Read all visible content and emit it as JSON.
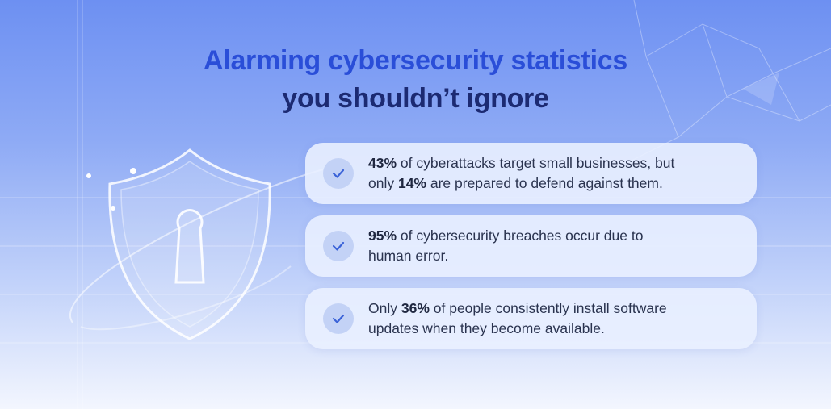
{
  "title": {
    "line1": "Alarming cybersecurity statistics",
    "line2": "you shouldn’t ignore"
  },
  "items": [
    {
      "segments": [
        "43%",
        " of cyberattacks target small businesses, but",
        "only ",
        "14%",
        " are prepared to defend against them."
      ]
    },
    {
      "segments": [
        "95%",
        " of cybersecurity breaches occur due to",
        "human error."
      ]
    },
    {
      "segments": [
        "Only ",
        "36%",
        " of people consistently install software",
        "updates when they become available."
      ]
    }
  ]
}
